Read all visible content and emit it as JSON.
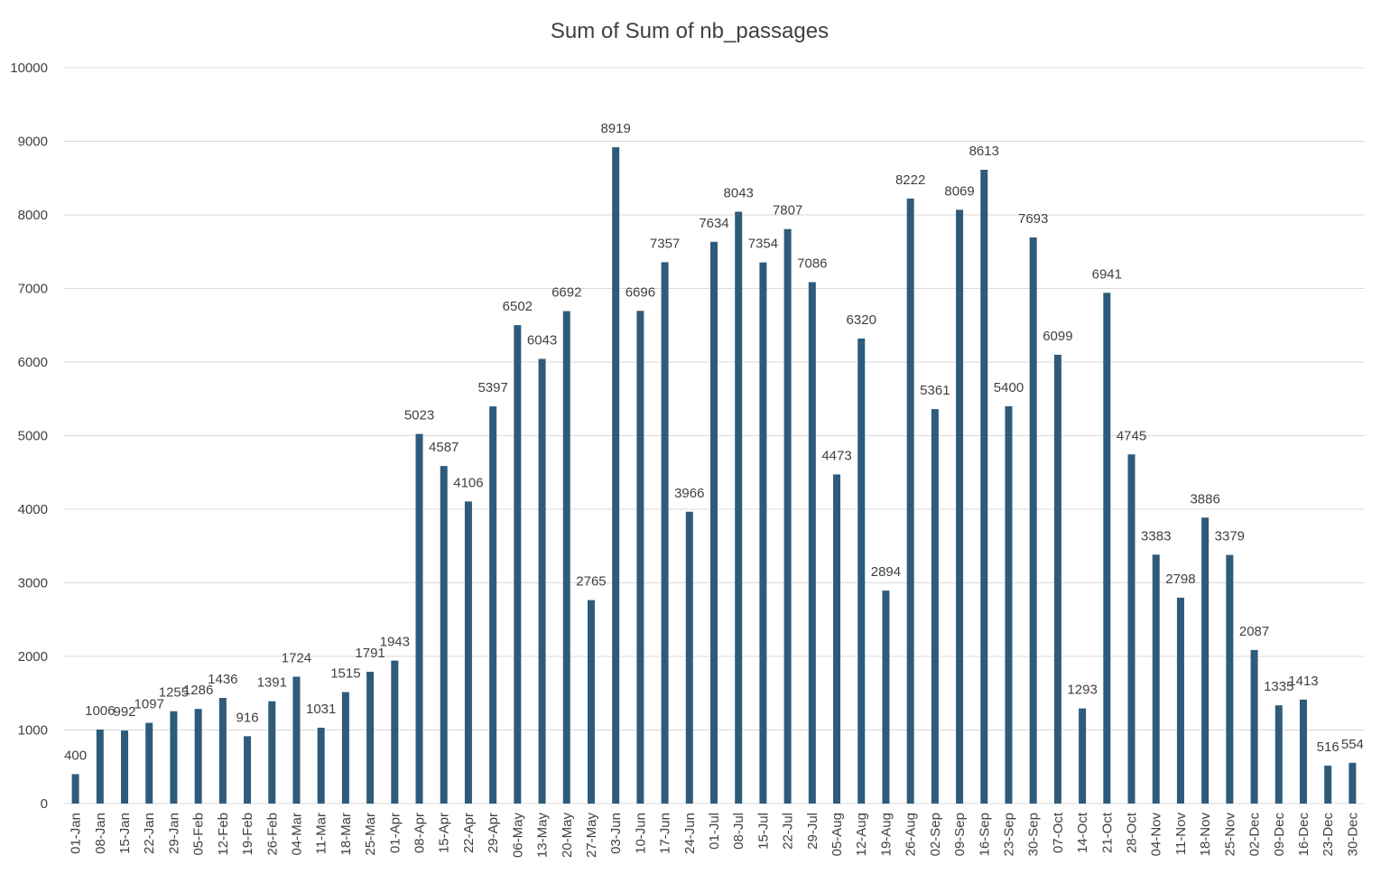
{
  "chart_data": {
    "type": "bar",
    "title": "Sum of Sum of nb_passages",
    "xlabel": "",
    "ylabel": "",
    "ylim": [
      0,
      10000
    ],
    "yticks": [
      0,
      1000,
      2000,
      3000,
      4000,
      5000,
      6000,
      7000,
      8000,
      9000,
      10000
    ],
    "grid": true,
    "legend": "none",
    "bar_color": "#2e5b7b",
    "gridline_color": "#d9d9d9",
    "categories": [
      "01-Jan",
      "08-Jan",
      "15-Jan",
      "22-Jan",
      "29-Jan",
      "05-Feb",
      "12-Feb",
      "19-Feb",
      "26-Feb",
      "04-Mar",
      "11-Mar",
      "18-Mar",
      "25-Mar",
      "01-Apr",
      "08-Apr",
      "15-Apr",
      "22-Apr",
      "29-Apr",
      "06-May",
      "13-May",
      "20-May",
      "27-May",
      "03-Jun",
      "10-Jun",
      "17-Jun",
      "24-Jun",
      "01-Jul",
      "08-Jul",
      "15-Jul",
      "22-Jul",
      "29-Jul",
      "05-Aug",
      "12-Aug",
      "19-Aug",
      "26-Aug",
      "02-Sep",
      "09-Sep",
      "16-Sep",
      "23-Sep",
      "30-Sep",
      "07-Oct",
      "14-Oct",
      "21-Oct",
      "28-Oct",
      "04-Nov",
      "11-Nov",
      "18-Nov",
      "25-Nov",
      "02-Dec",
      "09-Dec",
      "16-Dec",
      "23-Dec",
      "30-Dec"
    ],
    "values": [
      400,
      1006,
      992,
      1097,
      1255,
      1286,
      1436,
      916,
      1391,
      1724,
      1031,
      1515,
      1791,
      1943,
      5023,
      4587,
      4106,
      5397,
      6502,
      6043,
      6692,
      2765,
      8919,
      6696,
      7357,
      3966,
      7634,
      8043,
      7354,
      7807,
      7086,
      4473,
      6320,
      2894,
      8222,
      5361,
      8069,
      8613,
      5400,
      7693,
      6099,
      1293,
      6941,
      4745,
      3383,
      2798,
      3886,
      3379,
      2087,
      1335,
      1413,
      516,
      554
    ]
  }
}
